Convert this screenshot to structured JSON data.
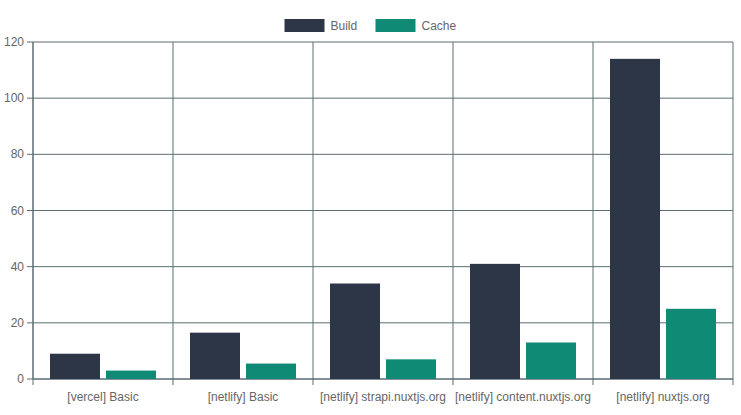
{
  "chart_data": {
    "type": "bar",
    "categories": [
      "[vercel] Basic",
      "[netlify] Basic",
      "[netlify] strapi.nuxtjs.org",
      "[netlify] content.nuxtjs.org",
      "[netlify] nuxtjs.org"
    ],
    "series": [
      {
        "name": "Build",
        "color": "#2d3647",
        "values": [
          9,
          16.5,
          34,
          41,
          114
        ]
      },
      {
        "name": "Cache",
        "color": "#0f8a74",
        "values": [
          3,
          5.5,
          7,
          13,
          25
        ]
      }
    ],
    "ylim": [
      0,
      120
    ],
    "yticks": [
      0,
      20,
      40,
      60,
      80,
      100,
      120
    ],
    "grid": true,
    "legend": "top"
  }
}
